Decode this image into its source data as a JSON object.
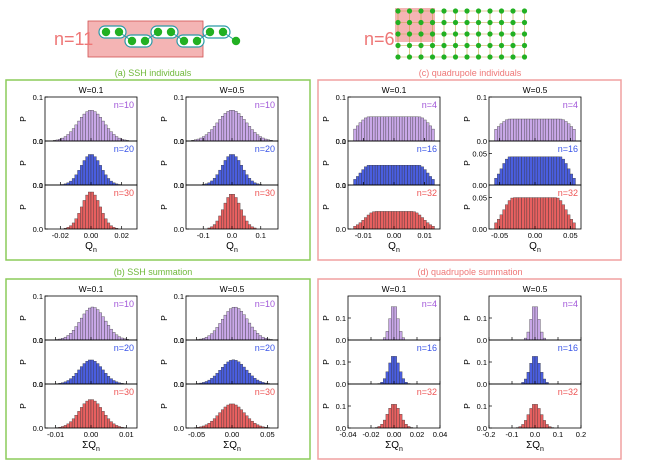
{
  "colors": {
    "green_panel": "#8ccc5a",
    "pink_panel": "#f0a0a0",
    "purple": "#c9a8e8",
    "blue": "#4a5ee0",
    "red": "#e86060",
    "label_purple": "#a055d8",
    "label_blue": "#3a55e8",
    "label_red": "#ee5555",
    "label_green": "#6fb83a",
    "label_pink": "#ee7777",
    "schematic_box": "#f4b4b4",
    "schematic_dot": "#22b022",
    "schematic_link": "#2a9aa8"
  },
  "schematics": [
    {
      "label": "n=11",
      "icon": "ssh-chain-schematic"
    },
    {
      "label": "n=6",
      "icon": "quadrupole-lattice-schematic"
    }
  ],
  "chart_data": [
    {
      "panel_title": "(a) SSH individuals",
      "type": "histogram-grid",
      "ylabel": "P",
      "columns": [
        {
          "title": "W=0.1",
          "xlim": [
            -0.03,
            0.03
          ],
          "xticks": [
            -0.02,
            0.0,
            0.02
          ],
          "xtick_labels": [
            "-0.02",
            "0.00",
            "0.02"
          ],
          "xlabel_main": "Q",
          "xlabel_sub": "n",
          "rows": [
            {
              "series": "n=10",
              "ylim": [
                0,
                0.1
              ],
              "yticks": [
                0.0,
                0.1
              ],
              "ytick_labels": [
                "0.0",
                "0.1"
              ],
              "center": 0.0,
              "width": 0.0085,
              "peak": 0.07,
              "flat": 0
            },
            {
              "series": "n=20",
              "ylim": [
                0,
                0.1
              ],
              "yticks": [
                0.0,
                0.1
              ],
              "ytick_labels": [
                "0.0",
                "0.1"
              ],
              "center": 0.0,
              "width": 0.0065,
              "peak": 0.07,
              "flat": 0
            },
            {
              "series": "n=30",
              "ylim": [
                0,
                0.1
              ],
              "yticks": [
                0.0,
                0.1
              ],
              "ytick_labels": [
                "0.0",
                "0.1"
              ],
              "center": 0.0,
              "width": 0.006,
              "peak": 0.085,
              "flat": 0
            }
          ]
        },
        {
          "title": "W=0.5",
          "xlim": [
            -0.16,
            0.16
          ],
          "xticks": [
            -0.1,
            0.0,
            0.1
          ],
          "xtick_labels": [
            "-0.1",
            "0.0",
            "0.1"
          ],
          "xlabel_main": "Q",
          "xlabel_sub": "n",
          "rows": [
            {
              "series": "n=10",
              "ylim": [
                0,
                0.1
              ],
              "yticks": [
                0.0,
                0.1
              ],
              "ytick_labels": [
                "0.0",
                "0.1"
              ],
              "center": 0.0,
              "width": 0.05,
              "peak": 0.07,
              "flat": 0
            },
            {
              "series": "n=20",
              "ylim": [
                0,
                0.1
              ],
              "yticks": [
                0.0,
                0.1
              ],
              "ytick_labels": [
                "0.0",
                "0.1"
              ],
              "center": 0.0,
              "width": 0.035,
              "peak": 0.07,
              "flat": 0
            },
            {
              "series": "n=30",
              "ylim": [
                0,
                0.1
              ],
              "yticks": [
                0.0,
                0.1
              ],
              "ytick_labels": [
                "0.0",
                "0.1"
              ],
              "center": 0.0,
              "width": 0.03,
              "peak": 0.08,
              "flat": 0
            }
          ]
        }
      ]
    },
    {
      "panel_title": "(c) quadrupole individuals",
      "type": "histogram-grid",
      "ylabel": "P",
      "columns": [
        {
          "title": "W=0.1",
          "xlim": [
            -0.015,
            0.015
          ],
          "xticks": [
            -0.01,
            0.0,
            0.01
          ],
          "xtick_labels": [
            "-0.01",
            "0.00",
            "0.01"
          ],
          "xlabel_main": "Q",
          "xlabel_sub": "n",
          "rows": [
            {
              "series": "n=4",
              "ylim": [
                0,
                0.1
              ],
              "yticks": [
                0.0,
                0.1
              ],
              "ytick_labels": [
                "0.0",
                "0.1"
              ],
              "center": 0.0,
              "width": 0.004,
              "peak": 0.055,
              "flat": 0.008
            },
            {
              "series": "n=16",
              "ylim": [
                0,
                0.1
              ],
              "yticks": [
                0.0,
                0.1
              ],
              "ytick_labels": [
                "0.0",
                "0.1"
              ],
              "center": 0.0,
              "width": 0.003,
              "peak": 0.045,
              "flat": 0.008
            },
            {
              "series": "n=32",
              "ylim": [
                0,
                0.1
              ],
              "yticks": [
                0.0,
                0.1
              ],
              "ytick_labels": [
                "0.0",
                "0.1"
              ],
              "center": 0.0,
              "width": 0.0035,
              "peak": 0.04,
              "flat": 0.006
            }
          ]
        },
        {
          "title": "W=0.5",
          "xlim": [
            -0.065,
            0.065
          ],
          "xticks": [
            -0.05,
            0.0,
            0.05
          ],
          "xtick_labels": [
            "-0.05",
            "0.00",
            "0.05"
          ],
          "xlabel_main": "Q",
          "xlabel_sub": "n",
          "rows": [
            {
              "series": "n=4",
              "ylim": [
                0,
                0.1
              ],
              "yticks": [
                0.0,
                0.1
              ],
              "ytick_labels": [
                "0.0",
                "0.1"
              ],
              "center": 0.0,
              "width": 0.018,
              "peak": 0.05,
              "flat": 0.035
            },
            {
              "series": "n=16",
              "ylim": [
                0,
                0.07
              ],
              "yticks": [
                0.0,
                0.05
              ],
              "ytick_labels": [
                "0.00",
                "0.05"
              ],
              "center": 0.0,
              "width": 0.012,
              "peak": 0.045,
              "flat": 0.035
            },
            {
              "series": "n=32",
              "ylim": [
                0,
                0.07
              ],
              "yticks": [
                0.0,
                0.05
              ],
              "ytick_labels": [
                "0.00",
                "0.05"
              ],
              "center": 0.0,
              "width": 0.014,
              "peak": 0.05,
              "flat": 0.03
            }
          ]
        }
      ]
    },
    {
      "panel_title": "(b) SSH summation",
      "type": "histogram-grid",
      "ylabel": "P",
      "columns": [
        {
          "title": "W=0.1",
          "xlim": [
            -0.013,
            0.013
          ],
          "xticks": [
            -0.01,
            0.0,
            0.01
          ],
          "xtick_labels": [
            "-0.01",
            "0.00",
            "0.01"
          ],
          "xlabel_main": "ΣQ",
          "xlabel_sub": "n",
          "rows": [
            {
              "series": "n=10",
              "ylim": [
                0,
                0.1
              ],
              "yticks": [
                0.0,
                0.1
              ],
              "ytick_labels": [
                "0.0",
                "0.1"
              ],
              "center": 0.0005,
              "width": 0.0035,
              "peak": 0.075,
              "flat": 0
            },
            {
              "series": "n=20",
              "ylim": [
                0,
                0.1
              ],
              "yticks": [
                0.0,
                0.1
              ],
              "ytick_labels": [
                "0.0",
                "0.1"
              ],
              "center": 0.0,
              "width": 0.0033,
              "peak": 0.055,
              "flat": 0
            },
            {
              "series": "n=30",
              "ylim": [
                0,
                0.1
              ],
              "yticks": [
                0.0,
                0.1
              ],
              "ytick_labels": [
                "0.0",
                "0.1"
              ],
              "center": 0.0,
              "width": 0.0033,
              "peak": 0.065,
              "flat": 0
            }
          ]
        },
        {
          "title": "W=0.5",
          "xlim": [
            -0.065,
            0.065
          ],
          "xticks": [
            -0.05,
            0.0,
            0.05
          ],
          "xtick_labels": [
            "-0.05",
            "0.00",
            "0.05"
          ],
          "xlabel_main": "ΣQ",
          "xlabel_sub": "n",
          "rows": [
            {
              "series": "n=10",
              "ylim": [
                0,
                0.1
              ],
              "yticks": [
                0.0,
                0.1
              ],
              "ytick_labels": [
                "0.0",
                "0.1"
              ],
              "center": 0.004,
              "width": 0.018,
              "peak": 0.075,
              "flat": 0
            },
            {
              "series": "n=20",
              "ylim": [
                0,
                0.1
              ],
              "yticks": [
                0.0,
                0.1
              ],
              "ytick_labels": [
                "0.0",
                "0.1"
              ],
              "center": 0.002,
              "width": 0.018,
              "peak": 0.055,
              "flat": 0
            },
            {
              "series": "n=30",
              "ylim": [
                0,
                0.1
              ],
              "yticks": [
                0.0,
                0.1
              ],
              "ytick_labels": [
                "0.0",
                "0.1"
              ],
              "center": 0.0,
              "width": 0.018,
              "peak": 0.055,
              "flat": 0
            }
          ]
        }
      ]
    },
    {
      "panel_title": "(d) quadrupole summation",
      "type": "histogram-grid",
      "ylabel": "P",
      "columns": [
        {
          "title": "W=0.1",
          "xlim": [
            -0.04,
            0.04
          ],
          "xticks": [
            -0.04,
            -0.02,
            0.0,
            0.02,
            0.04
          ],
          "xtick_labels": [
            "-0.04",
            "-0.02",
            "0.00",
            "0.02",
            "0.04"
          ],
          "xlabel_main": "ΣQ",
          "xlabel_sub": "n",
          "rows": [
            {
              "series": "n=4",
              "ylim": [
                0,
                0.2
              ],
              "yticks": [
                0.0,
                0.1
              ],
              "ytick_labels": [
                "0.0",
                "0.1"
              ],
              "center": 0.0,
              "width": 0.0035,
              "peak": 0.16,
              "flat": 0
            },
            {
              "series": "n=16",
              "ylim": [
                0,
                0.2
              ],
              "yticks": [
                0.0,
                0.1
              ],
              "ytick_labels": [
                "0.0",
                "0.1"
              ],
              "center": 0.0,
              "width": 0.0045,
              "peak": 0.13,
              "flat": 0
            },
            {
              "series": "n=32",
              "ylim": [
                0,
                0.2
              ],
              "yticks": [
                0.0,
                0.1
              ],
              "ytick_labels": [
                "0.0",
                "0.1"
              ],
              "center": 0.0,
              "width": 0.0055,
              "peak": 0.11,
              "flat": 0
            }
          ]
        },
        {
          "title": "W=0.5",
          "xlim": [
            -0.2,
            0.2
          ],
          "xticks": [
            -0.2,
            -0.1,
            0.0,
            0.1,
            0.2
          ],
          "xtick_labels": [
            "-0.2",
            "-0.1",
            "0.0",
            "0.1",
            "0.2"
          ],
          "xlabel_main": "ΣQ",
          "xlabel_sub": "n",
          "rows": [
            {
              "series": "n=4",
              "ylim": [
                0,
                0.2
              ],
              "yticks": [
                0.0,
                0.1
              ],
              "ytick_labels": [
                "0.0",
                "0.1"
              ],
              "center": 0.0,
              "width": 0.017,
              "peak": 0.16,
              "flat": 0
            },
            {
              "series": "n=16",
              "ylim": [
                0,
                0.2
              ],
              "yticks": [
                0.0,
                0.1
              ],
              "ytick_labels": [
                "0.0",
                "0.1"
              ],
              "center": 0.0,
              "width": 0.022,
              "peak": 0.13,
              "flat": 0
            },
            {
              "series": "n=32",
              "ylim": [
                0,
                0.2
              ],
              "yticks": [
                0.0,
                0.1
              ],
              "ytick_labels": [
                "0.0",
                "0.1"
              ],
              "center": 0.0,
              "width": 0.027,
              "peak": 0.11,
              "flat": 0
            }
          ]
        }
      ]
    }
  ]
}
